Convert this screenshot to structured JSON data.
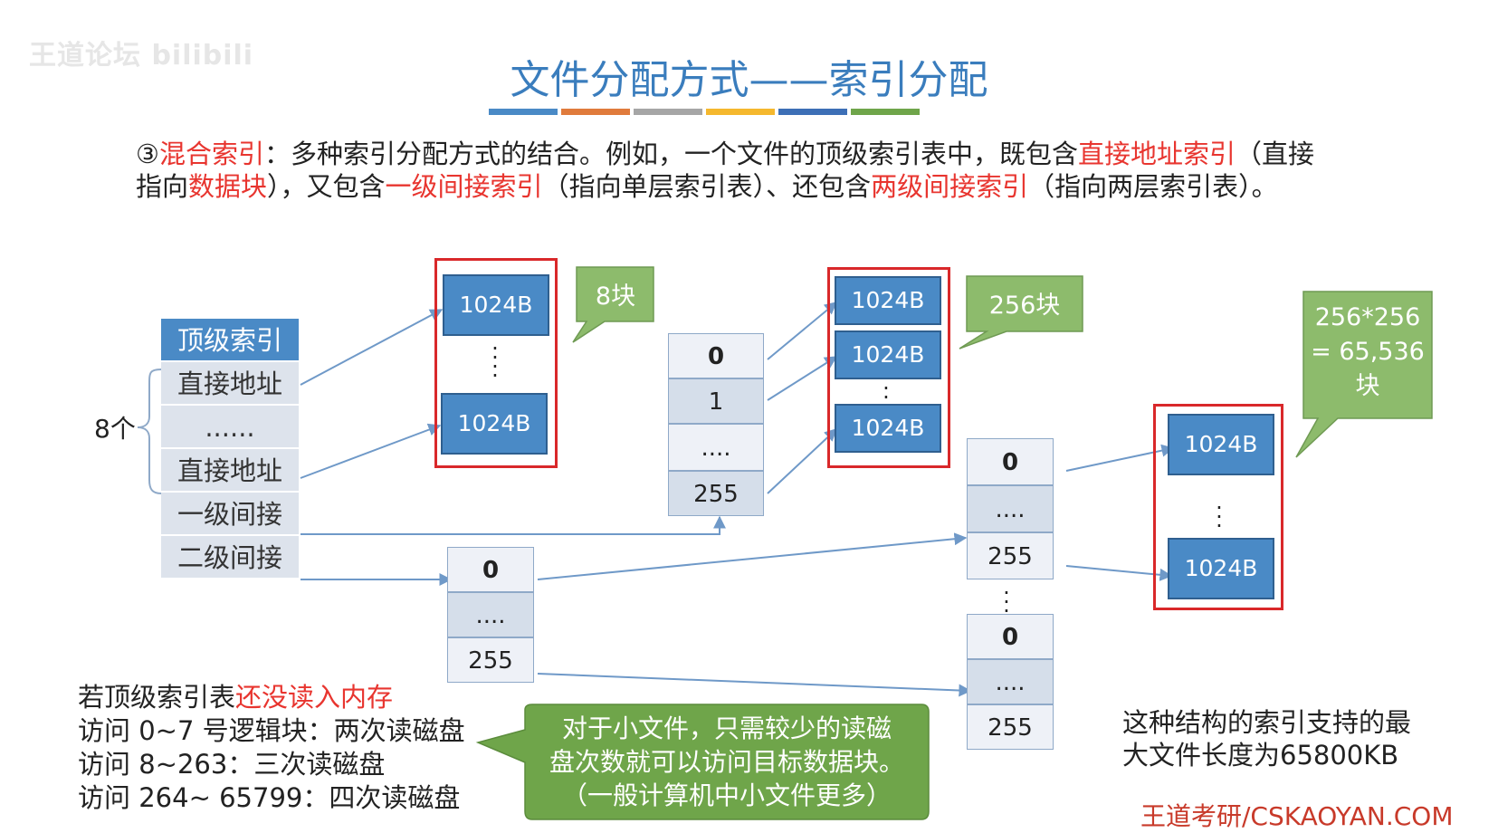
{
  "watermark": "王道论坛 bilibili",
  "title": "文件分配方式——索引分配",
  "stripes": [
    "#4a8ac6",
    "#e07b3c",
    "#a6a6a6",
    "#f5b82e",
    "#3d6fb6",
    "#6fa54a"
  ],
  "intro": {
    "line1_parts": [
      "③",
      "混合索引",
      "：多种索引分配方式的结合。例如，一个文件的顶级索引表中，既包含",
      "直接地址索引",
      "（直接"
    ],
    "line2_parts": [
      "指向",
      "数据块",
      "），又包含",
      "一级间接索引",
      "（指向单层索引表）、还包含",
      "两级间接索引",
      "（指向两层索引表）。"
    ]
  },
  "top_index": {
    "header": "顶级索引",
    "rows": [
      "直接地址",
      "......",
      "直接地址",
      "一级间接",
      "二级间接"
    ]
  },
  "eight_label": "8个",
  "block_label": "1024B",
  "callout_8": "8块",
  "callout_256": "256块",
  "callout_65536": [
    "256*256",
    "= 65,536",
    "块"
  ],
  "level1_index": [
    "0",
    "1",
    "....",
    "255"
  ],
  "level2_top": [
    "0",
    "....",
    "255"
  ],
  "level2_a": [
    "0",
    "....",
    "255"
  ],
  "level2_b": [
    "0",
    "....",
    "255"
  ],
  "bottom_notes": {
    "line1_parts": [
      "若顶级索引表",
      "还没读入内存"
    ],
    "line2": "访问 0~7 号逻辑块：两次读磁盘",
    "line3": "访问 8~263：三次读磁盘",
    "line4": "访问 264~ 65799：四次读磁盘"
  },
  "small_file_note": [
    "对于小文件，只需较少的读磁",
    "盘次数就可以访问目标数据块。",
    "（一般计算机中小文件更多）"
  ],
  "max_length_note": [
    "这种结构的索引支持的最",
    "大文件长度为65800KB"
  ],
  "brand": "王道考研/CSKAOYAN.COM",
  "colors": {
    "title": "#3a7dbd",
    "highlight": "#e8352f",
    "block": "#4a8ac6",
    "callout": "#8dbb6c",
    "frame": "#d9282a"
  }
}
